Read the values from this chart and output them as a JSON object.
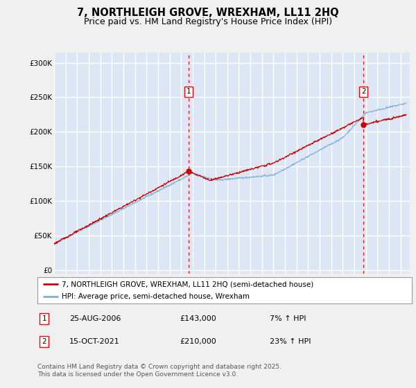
{
  "title": "7, NORTHLEIGH GROVE, WREXHAM, LL11 2HQ",
  "subtitle": "Price paid vs. HM Land Registry's House Price Index (HPI)",
  "ylabel_ticks": [
    "£0",
    "£50K",
    "£100K",
    "£150K",
    "£200K",
    "£250K",
    "£300K"
  ],
  "ytick_values": [
    0,
    50000,
    100000,
    150000,
    200000,
    250000,
    300000
  ],
  "ylim": [
    -5000,
    315000
  ],
  "xlim_start": 1995.0,
  "xlim_end": 2025.8,
  "background_color": "#f0f0f0",
  "plot_bg_color": "#dce6f5",
  "grid_color": "#ffffff",
  "sale1_date": 2006.648,
  "sale1_price": 143000,
  "sale1_label": "1",
  "sale2_date": 2021.789,
  "sale2_price": 210000,
  "sale2_label": "2",
  "red_line_color": "#cc0000",
  "blue_line_color": "#7cafd4",
  "legend_label_red": "7, NORTHLEIGH GROVE, WREXHAM, LL11 2HQ (semi-detached house)",
  "legend_label_blue": "HPI: Average price, semi-detached house, Wrexham",
  "annotation1_date": "25-AUG-2006",
  "annotation1_price": "£143,000",
  "annotation1_hpi": "7% ↑ HPI",
  "annotation2_date": "15-OCT-2021",
  "annotation2_price": "£210,000",
  "annotation2_hpi": "23% ↑ HPI",
  "footer": "Contains HM Land Registry data © Crown copyright and database right 2025.\nThis data is licensed under the Open Government Licence v3.0.",
  "title_fontsize": 10.5,
  "subtitle_fontsize": 9,
  "tick_fontsize": 7.5,
  "legend_fontsize": 7.5,
  "annot_fontsize": 8,
  "footer_fontsize": 6.5
}
